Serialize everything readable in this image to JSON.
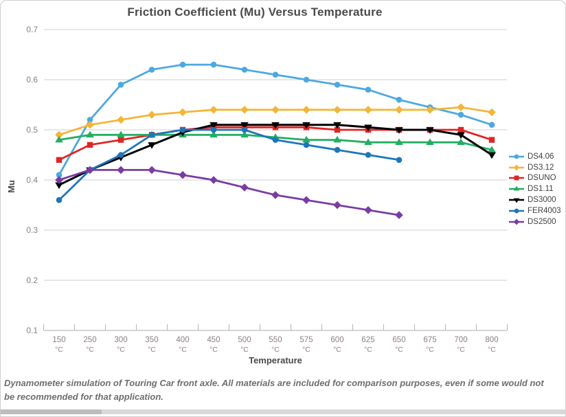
{
  "caption": "Dynamometer simulation of Touring Car front axle. All materials are included for comparison purposes, even if some would not be recommended for that application.",
  "colors": {
    "gridline": "#cfcfcf",
    "axis_line": "#ababab",
    "tick": "#b5b5b5",
    "y_tick_text": "#848484",
    "x_tick_text": "#8d8080",
    "title_text": "#4a4a4a"
  },
  "chart_data": {
    "type": "line",
    "title": "Friction Coefficient (Mu) Versus Temperature",
    "xlabel": "Temperature",
    "ylabel": "Mu",
    "ylim": [
      0.1,
      0.7
    ],
    "ytick_step": 0.1,
    "yticks": [
      "0.7",
      "0.6",
      "0.5",
      "0.4",
      "0.3",
      "0.2",
      "0.1"
    ],
    "grid": "horizontal",
    "legend_position": "right",
    "categories": [
      "150",
      "250",
      "300",
      "350",
      "400",
      "450",
      "500",
      "550",
      "575",
      "600",
      "625",
      "650",
      "675",
      "700",
      "800"
    ],
    "category_unit": "°C",
    "series": [
      {
        "name": "DS4.06",
        "color": "#4CA9E0",
        "marker": "circle",
        "values": [
          0.41,
          0.52,
          0.59,
          0.62,
          0.63,
          0.63,
          0.62,
          0.61,
          0.6,
          0.59,
          0.58,
          0.56,
          0.545,
          0.53,
          0.51
        ]
      },
      {
        "name": "DS3.12",
        "color": "#F3B63A",
        "marker": "diamond",
        "values": [
          0.49,
          0.51,
          0.52,
          0.53,
          0.535,
          0.54,
          0.54,
          0.54,
          0.54,
          0.54,
          0.54,
          0.54,
          0.54,
          0.545,
          0.535
        ]
      },
      {
        "name": "DSUNO",
        "color": "#E02525",
        "marker": "square",
        "values": [
          0.44,
          0.47,
          0.48,
          0.49,
          0.5,
          0.505,
          0.505,
          0.505,
          0.505,
          0.5,
          0.5,
          0.5,
          0.5,
          0.5,
          0.48
        ]
      },
      {
        "name": "DS1.11",
        "color": "#23AE63",
        "marker": "triangle-up",
        "values": [
          0.48,
          0.49,
          0.49,
          0.49,
          0.49,
          0.49,
          0.49,
          0.485,
          0.48,
          0.48,
          0.475,
          0.475,
          0.475,
          0.475,
          0.46
        ]
      },
      {
        "name": "DS3000",
        "color": "#000000",
        "marker": "triangle-down",
        "values": [
          0.39,
          0.42,
          0.445,
          0.47,
          0.495,
          0.51,
          0.51,
          0.51,
          0.51,
          0.51,
          0.505,
          0.5,
          0.5,
          0.49,
          0.45
        ]
      },
      {
        "name": "FER4003",
        "color": "#1C76BC",
        "marker": "circle",
        "values": [
          0.36,
          0.42,
          0.45,
          0.49,
          0.5,
          0.5,
          0.5,
          0.48,
          0.47,
          0.46,
          0.45,
          0.44,
          null,
          null,
          null
        ]
      },
      {
        "name": "DS2500",
        "color": "#7A3DA3",
        "marker": "diamond",
        "values": [
          0.4,
          0.42,
          0.42,
          0.42,
          0.41,
          0.4,
          0.385,
          0.37,
          0.36,
          0.35,
          0.34,
          0.33,
          null,
          null,
          null
        ]
      }
    ]
  }
}
